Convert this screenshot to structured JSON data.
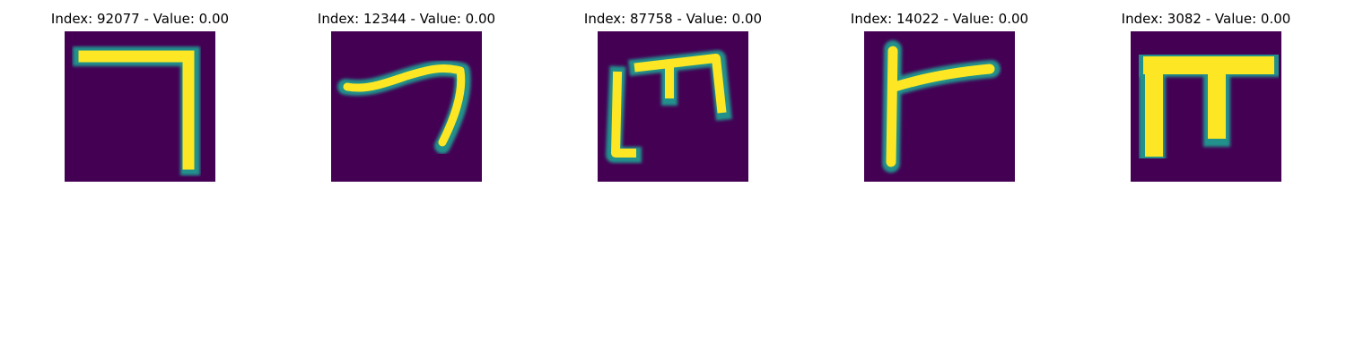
{
  "panels": [
    {
      "title": "Index: 92077 - Value: 0.00",
      "image": "handwritten-glyph-7"
    },
    {
      "title": "Index: 12344 - Value: 0.00",
      "image": "handwritten-glyph-curved-7"
    },
    {
      "title": "Index: 87758 - Value: 0.00",
      "image": "handwritten-glyph-m-shape"
    },
    {
      "title": "Index: 14022 - Value: 0.00",
      "image": "handwritten-glyph-r-shape"
    },
    {
      "title": "Index: 3082 - Value: 0.00",
      "image": "handwritten-glyph-pi-shape"
    }
  ],
  "colors": {
    "background": "#440154",
    "mid": "#21918c",
    "high": "#fde725"
  }
}
